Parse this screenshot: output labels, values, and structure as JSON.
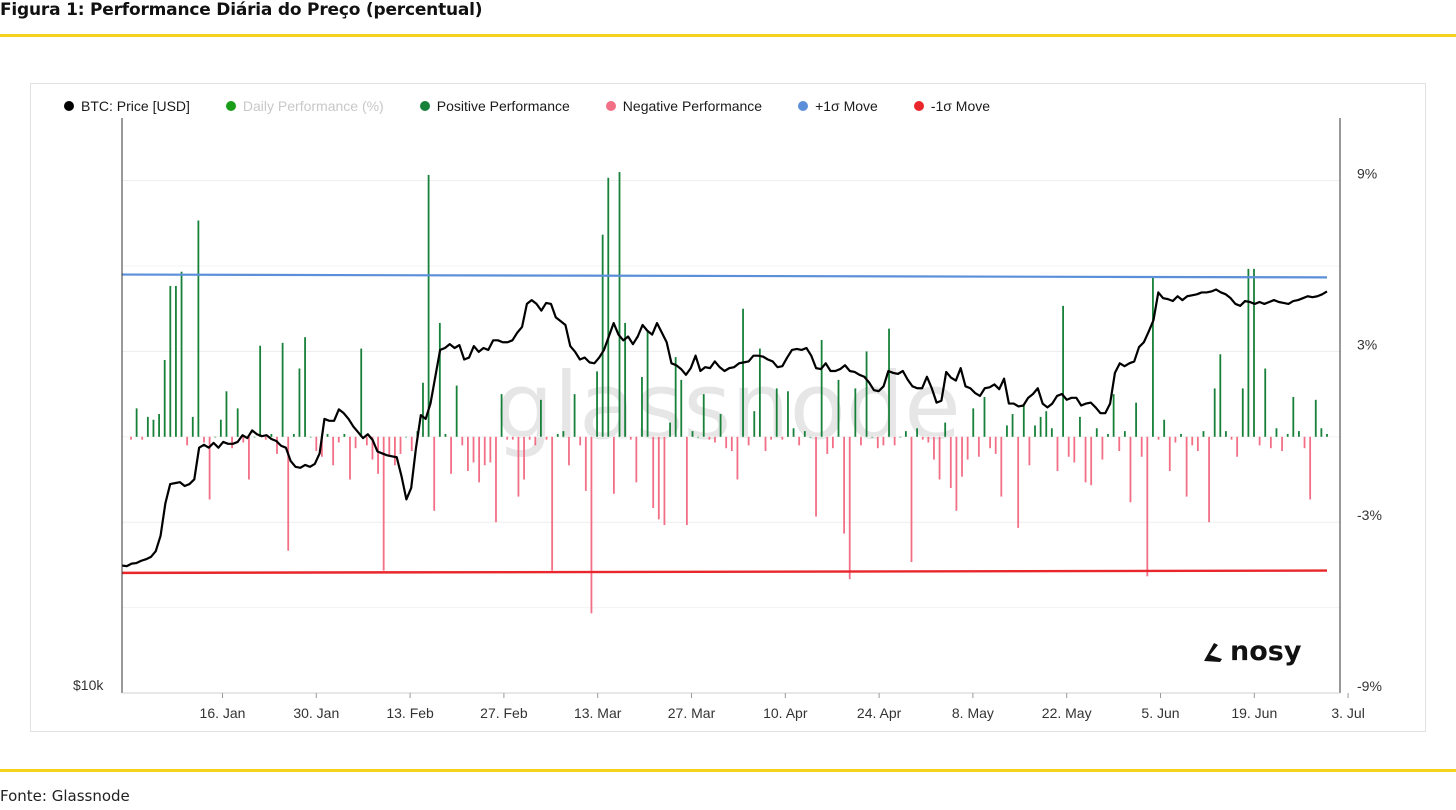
{
  "figure": {
    "title": "Figura 1: Performance Diária do Preço (percentual)",
    "source": "Fonte: Glassnode",
    "brand": "nosy",
    "watermark": "glassnode",
    "rule_color": "#f5d21c"
  },
  "chart_data": {
    "type": "bar",
    "title": "Figura 1: Performance Diária do Preço (percentual)",
    "legend": [
      {
        "name": "BTC: Price [USD]",
        "color": "#000000",
        "dim": false
      },
      {
        "name": "Daily Performance (%)",
        "color": "#1a9e1a",
        "dim": true
      },
      {
        "name": "Positive Performance",
        "color": "#17813a",
        "dim": false
      },
      {
        "name": "Negative Performance",
        "color": "#f26f86",
        "dim": false
      },
      {
        "name": "+1σ Move",
        "color": "#5b8fd9",
        "dim": false
      },
      {
        "name": "-1σ Move",
        "color": "#e8262b",
        "dim": false
      }
    ],
    "x_tick_labels": [
      "16. Jan",
      "30. Jan",
      "13. Feb",
      "27. Feb",
      "13. Mar",
      "27. Mar",
      "10. Apr",
      "24. Apr",
      "8. May",
      "22. May",
      "5. Jun",
      "19. Jun",
      "3. Jul"
    ],
    "x_tick_days": [
      15,
      29,
      43,
      57,
      71,
      85,
      99,
      113,
      127,
      141,
      155,
      169,
      183
    ],
    "right_axis": {
      "ticks": [
        9,
        3,
        -3,
        -9
      ],
      "labels": [
        "9%",
        "3%",
        "-3%",
        "-9%"
      ],
      "range": [
        -9,
        11.2
      ]
    },
    "left_axis": {
      "labels": [
        "$10k"
      ],
      "price_range": [
        10000,
        40000
      ]
    },
    "sigma": {
      "plus_start": 5.7,
      "plus_end": 5.6,
      "minus_start": -4.78,
      "minus_end": -4.7
    },
    "colors": {
      "price": "#000000",
      "positive": "#17813a",
      "negative": "#f26f86",
      "plus_sigma": "#5b8fd9",
      "minus_sigma": "#e8262b",
      "grid": "#ededed",
      "axis": "#333333"
    },
    "series": [
      {
        "name": "Daily Performance (%)",
        "values": [
          -0.1,
          1,
          -0.1,
          0.7,
          0.6,
          0.8,
          2.7,
          5.3,
          5.3,
          5.8,
          -0.3,
          0.7,
          7.6,
          -0.2,
          -2.2,
          0,
          0.6,
          1.6,
          -0.4,
          1,
          -0.2,
          -1.5,
          0,
          3.2,
          -0.1,
          0.1,
          -0.6,
          3.3,
          -4,
          0.1,
          2.4,
          3.5,
          0,
          -0.5,
          -0.7,
          0.1,
          -1,
          -0.2,
          0.1,
          -1.5,
          -0.4,
          3.1,
          -0.3,
          -0.8,
          -1.3,
          -4.7,
          -0.7,
          -1,
          -0.6,
          0,
          -0.5,
          0.2,
          1.9,
          9.2,
          -2.6,
          4,
          0.1,
          -1.3,
          1.8,
          -0.3,
          -1.2,
          -0.9,
          -1.6,
          -1,
          -0.9,
          -3,
          1.5,
          -0.1,
          -0.1,
          -2.1,
          -1.5,
          -0.1,
          -0.3,
          1.3,
          -0.1,
          -4.7,
          0.1,
          0.2,
          -1,
          1.5,
          -0.3,
          -1.9,
          -6.2,
          2.3,
          7.1,
          9.1,
          -2,
          9.3,
          4,
          -0.1,
          -1.6,
          2.1,
          3.7,
          -2.5,
          -2.9,
          -3.1,
          0.5,
          2.8,
          2,
          -3.1,
          0.2,
          0,
          1.5,
          -0.1,
          -0.2,
          0.8,
          -0.4,
          -0.5,
          -1.5,
          4.5,
          -0.3,
          0.9,
          3.1,
          -0.5,
          -0.1,
          1.7,
          -0.1,
          1.6,
          0.3,
          -0.3,
          0.2,
          0,
          -2.8,
          3.4,
          -0.6,
          -0.4,
          2,
          -3.4,
          -5,
          1.7,
          -0.3,
          3,
          0,
          -0.4,
          -0.3,
          3.8,
          -0.3,
          0,
          0.2,
          -4.4,
          0.3,
          -0.1,
          -0.2,
          -0.8,
          -1.5,
          0.5,
          -1.8,
          -2.6,
          -1.4,
          -0.8,
          1,
          -0.7,
          1.4,
          -0.4,
          -0.6,
          -2.1,
          0.4,
          0.8,
          -3.2,
          1.1,
          -1,
          0.4,
          0.7,
          0.9,
          0.3,
          -1.2,
          4.6,
          -0.7,
          -0.9,
          0.7,
          -1.6,
          -1.7,
          0.3,
          -0.8,
          0.1,
          1.5,
          -0.5,
          0.2,
          -2.3,
          1.2,
          -0.7,
          -4.9,
          5.6,
          -0.1,
          0.6,
          -1.2,
          -0.2,
          0.1,
          -2.1,
          -0.3,
          -0.5,
          0.2,
          -3,
          1.7,
          2.9,
          0.2,
          -0.1,
          -0.7,
          1.7,
          5.9,
          5.9,
          -0.3,
          2.4,
          -0.4,
          0.3,
          -0.5,
          0.1,
          1.4,
          0.2,
          -0.4,
          -2.2,
          1.3,
          0.3,
          0.1
        ]
      },
      {
        "name": "BTC: Price [USD]",
        "values": [
          16650,
          16620,
          16750,
          16780,
          16900,
          16980,
          17100,
          17400,
          18200,
          19900,
          20900,
          20950,
          21000,
          20800,
          20900,
          21150,
          22800,
          22950,
          22800,
          23050,
          22800,
          23100,
          23000,
          23000,
          23100,
          23450,
          23300,
          23700,
          23500,
          23400,
          23450,
          23250,
          23150,
          22900,
          22800,
          22100,
          21800,
          21750,
          21900,
          21800,
          21950,
          22500,
          24300,
          24200,
          24200,
          24800,
          24600,
          24300,
          23900,
          23600,
          23300,
          23500,
          23200,
          22600,
          22500,
          22400,
          22350,
          22300,
          21300,
          20100,
          20700,
          22800,
          24500,
          24300,
          25100,
          26500,
          27900,
          28000,
          28200,
          28000,
          28150,
          27400,
          27500,
          28100,
          27800,
          28000,
          27900,
          28400,
          28400,
          28300,
          28300,
          28400,
          28800,
          29100,
          30300,
          30500,
          30300,
          29950,
          30350,
          30300,
          29600,
          29400,
          29200,
          28100,
          27800,
          27400,
          27500,
          27250,
          27200,
          27500,
          27900,
          28600,
          29300,
          28700,
          28400,
          28600,
          28200,
          28600,
          29200,
          28900,
          28700,
          29300,
          28800,
          28300,
          27200,
          27100,
          26900,
          26600,
          26950,
          27600,
          26800,
          27000,
          26950,
          27300,
          27000,
          26800,
          26950,
          27000,
          27200,
          27250,
          27300,
          27600,
          27600,
          27550,
          27400,
          27300,
          27000,
          27050,
          27500,
          27900,
          27950,
          27900,
          28000,
          27600,
          26950,
          26900,
          27200,
          26800,
          26800,
          26900,
          27100,
          26800,
          26750,
          26600,
          26500,
          26200,
          25800,
          25750,
          26000,
          26800,
          26700,
          26650,
          26800,
          26350,
          26000,
          25900,
          25900,
          26500,
          25900,
          25150,
          25250,
          26750,
          26450,
          26300,
          26950,
          26000,
          25900,
          25650,
          25500,
          25900,
          25950,
          26100,
          25850,
          26400,
          25100,
          25100,
          24950,
          25000,
          25400,
          25600,
          25900,
          25100,
          24900,
          25100,
          25500,
          25600,
          25300,
          25400,
          25400,
          25000,
          25100,
          25150,
          24900,
          24600,
          24600,
          25100,
          26700,
          27200,
          27050,
          27200,
          27300,
          28050,
          28300,
          28850,
          29450,
          30900,
          30600,
          30550,
          30450,
          30700,
          30500,
          30700,
          30750,
          30800,
          30900,
          30900,
          30950,
          31050,
          30900,
          30800,
          30600,
          30300,
          30200,
          30450,
          30400,
          30300,
          30400,
          30300,
          30400,
          30500,
          30400,
          30350,
          30300,
          30450,
          30500,
          30600,
          30700,
          30650,
          30700,
          30800,
          30950
        ]
      }
    ]
  }
}
